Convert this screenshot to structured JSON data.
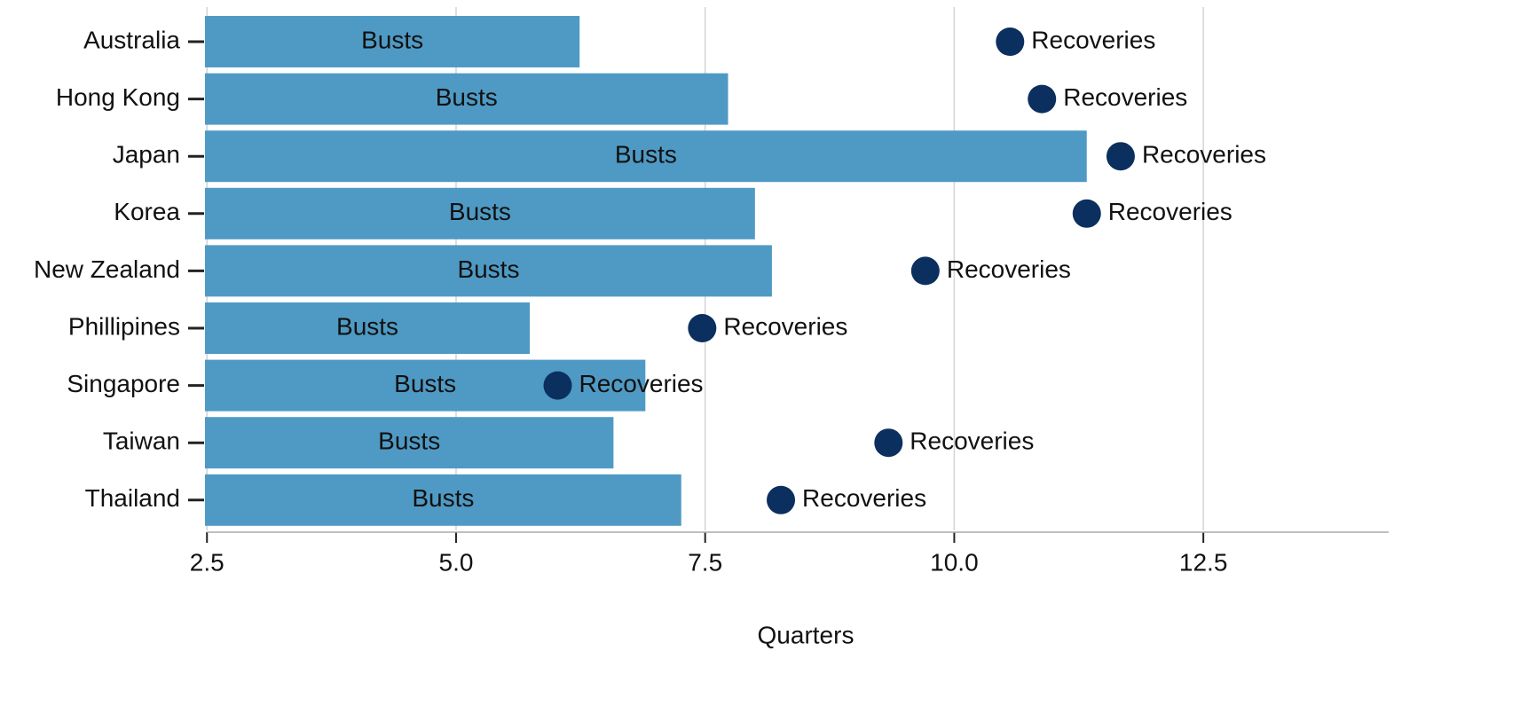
{
  "chart_data": {
    "type": "bar_dot",
    "xlabel": "Quarters",
    "categories": [
      "Australia",
      "Hong Kong",
      "Japan",
      "Korea",
      "New Zealand",
      "Phillipines",
      "Singapore",
      "Taiwan",
      "Thailand"
    ],
    "series": [
      {
        "name": "Busts",
        "color": "#4f9ac4",
        "values": [
          6.24,
          7.73,
          11.33,
          8.0,
          8.17,
          5.74,
          6.9,
          6.58,
          7.26
        ]
      },
      {
        "name": "Recoveries",
        "color": "#0b2f5e",
        "values": [
          10.56,
          10.88,
          11.67,
          11.33,
          9.71,
          7.47,
          6.02,
          9.34,
          8.26
        ]
      }
    ],
    "xlim": [
      2.48,
      14.36
    ],
    "xticks": [
      2.5,
      {
        "value": 5,
        "label": "5.0"
      },
      7.5,
      {
        "value": 10,
        "label": "10.0"
      },
      12.5
    ],
    "grid": true
  }
}
